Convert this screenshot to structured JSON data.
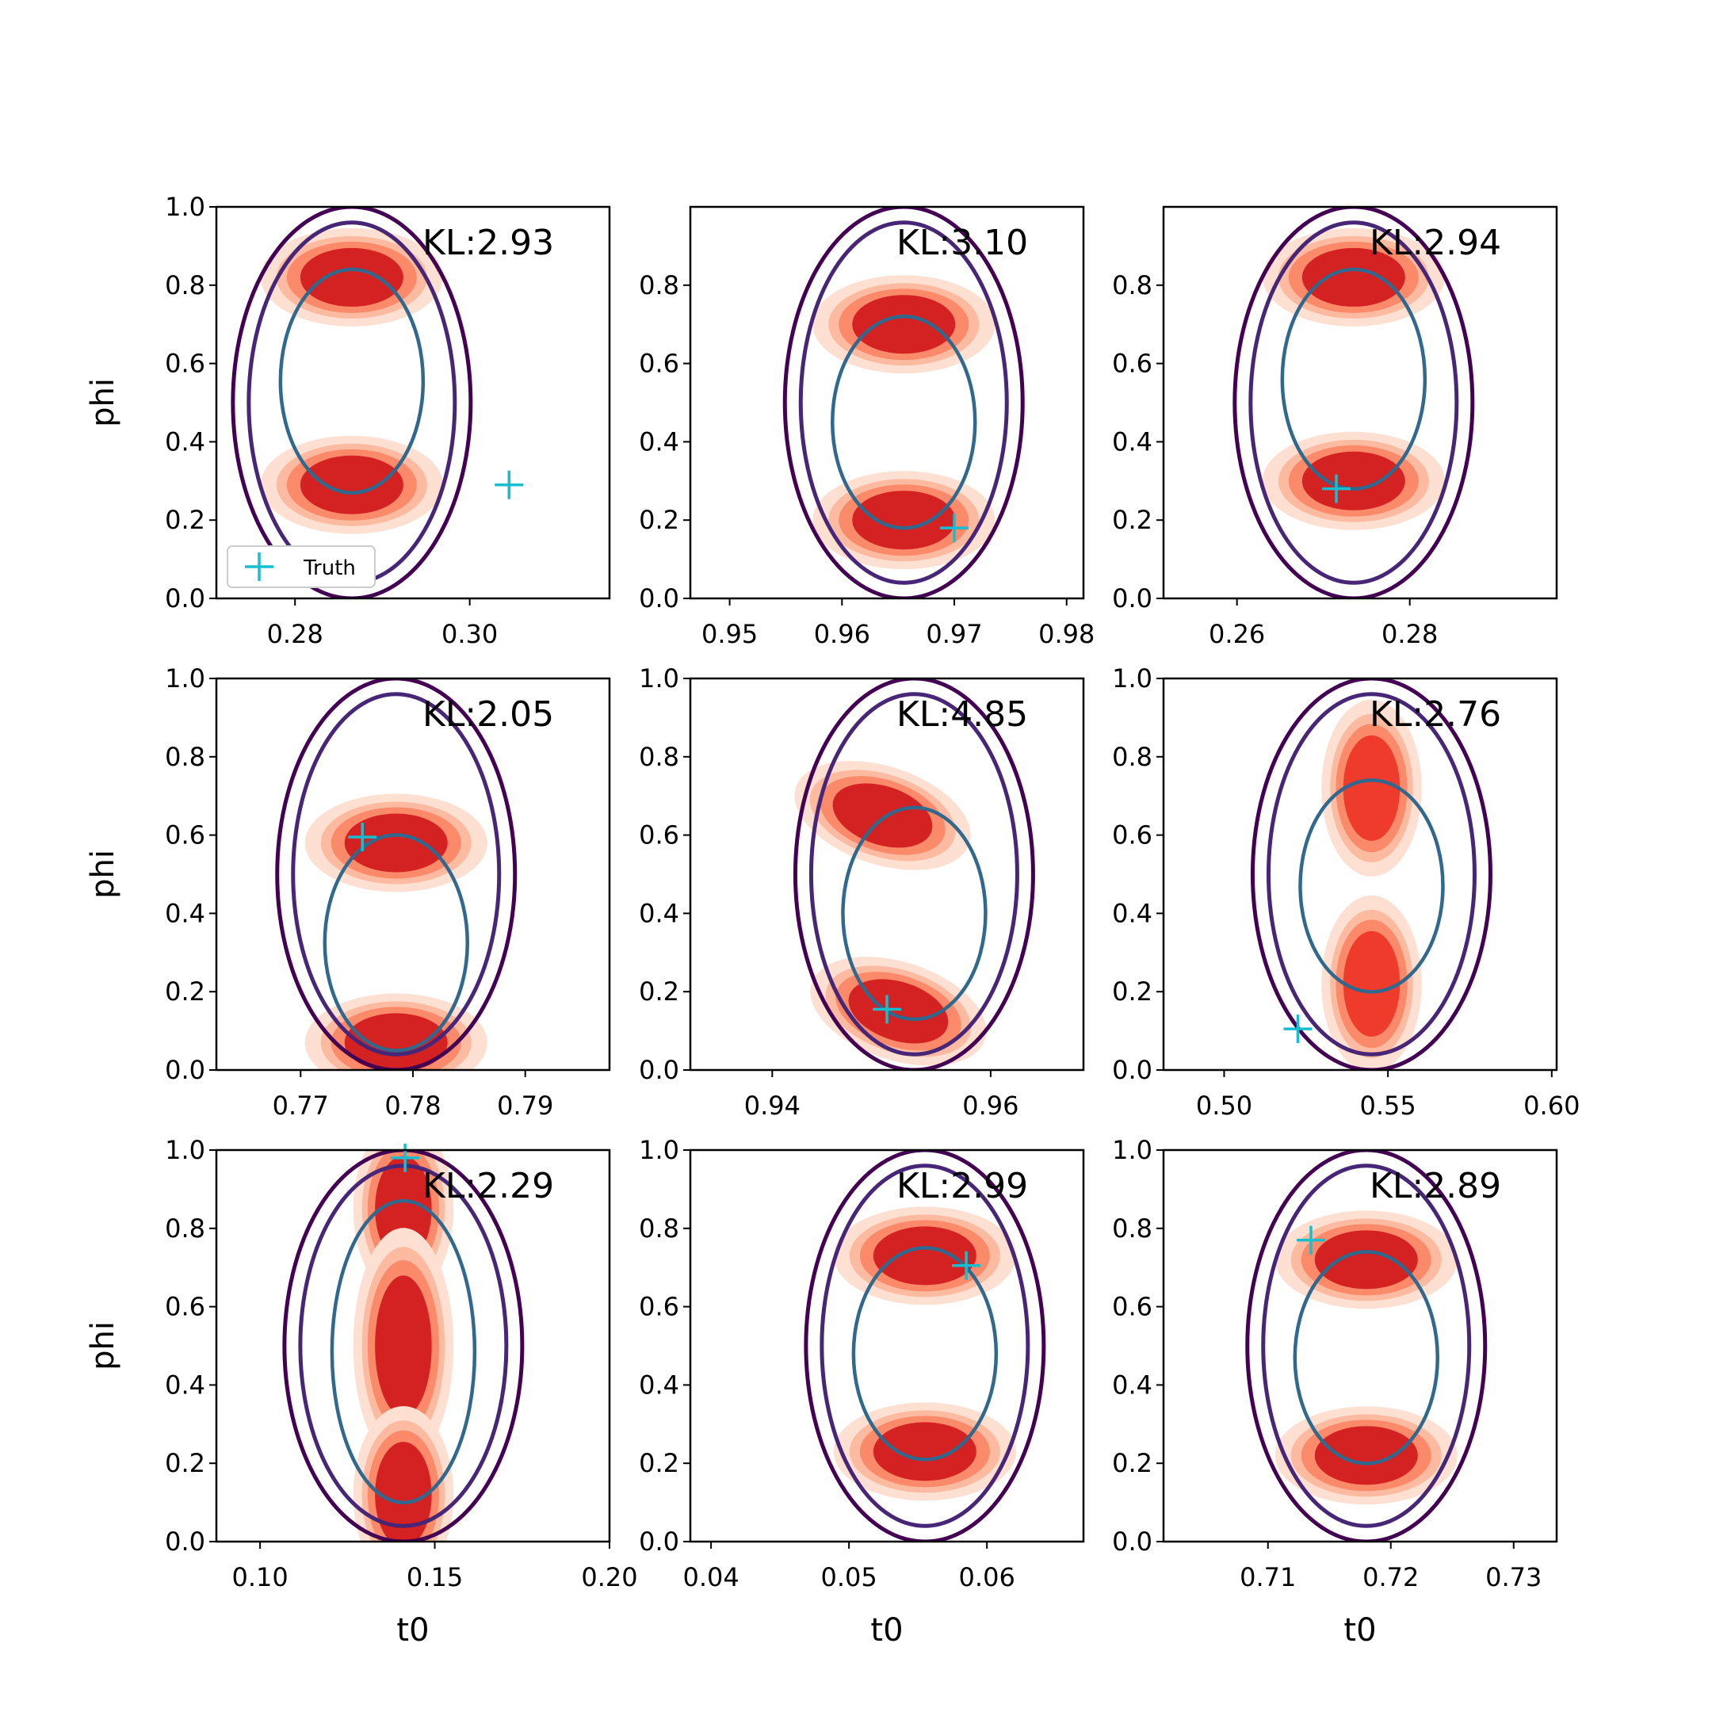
{
  "chart_data": [
    {
      "type": "contour",
      "xlabel": "",
      "ylabel": "phi",
      "xticks": [
        0.28,
        0.3
      ],
      "xlim": [
        0.271,
        0.316
      ],
      "yticks": [
        0.0,
        0.2,
        0.4,
        0.6,
        0.8,
        1.0
      ],
      "ylim": [
        0.0,
        1.0
      ],
      "annotation": "KL:2.93",
      "truth": {
        "x": 0.3045,
        "y": 0.29
      },
      "modes_phi": [
        0.82,
        0.29
      ],
      "center_t0": 0.2865,
      "legend": {
        "entries": [
          "Truth"
        ],
        "placement": "lower-left"
      }
    },
    {
      "type": "contour",
      "xlabel": "",
      "ylabel": "",
      "xticks": [
        0.95,
        0.96,
        0.97,
        0.98
      ],
      "xlim": [
        0.9465,
        0.9815
      ],
      "yticks": [
        0.0,
        0.2,
        0.4,
        0.6,
        0.8
      ],
      "ylim": [
        0.0,
        1.0
      ],
      "annotation": "KL:3.10",
      "truth": {
        "x": 0.97,
        "y": 0.18
      },
      "modes_phi": [
        0.7,
        0.2
      ],
      "center_t0": 0.9655
    },
    {
      "type": "contour",
      "xlabel": "",
      "ylabel": "",
      "xticks": [
        0.26,
        0.28
      ],
      "xlim": [
        0.2515,
        0.297
      ],
      "yticks": [
        0.0,
        0.2,
        0.4,
        0.6,
        0.8
      ],
      "ylim": [
        0.0,
        1.0
      ],
      "annotation": "KL:2.94",
      "truth": {
        "x": 0.2715,
        "y": 0.28
      },
      "modes_phi": [
        0.82,
        0.3
      ],
      "center_t0": 0.2735
    },
    {
      "type": "contour",
      "xlabel": "",
      "ylabel": "phi",
      "xticks": [
        0.77,
        0.78,
        0.79
      ],
      "xlim": [
        0.7625,
        0.7975
      ],
      "yticks": [
        0.0,
        0.2,
        0.4,
        0.6,
        0.8,
        1.0
      ],
      "ylim": [
        0.0,
        1.0
      ],
      "annotation": "KL:2.05",
      "truth": {
        "x": 0.7755,
        "y": 0.595
      },
      "modes_phi": [
        0.58,
        0.07
      ],
      "center_t0": 0.7785
    },
    {
      "type": "contour",
      "xlabel": "",
      "ylabel": "",
      "xticks": [
        0.94,
        0.96
      ],
      "xlim": [
        0.9325,
        0.9685
      ],
      "yticks": [
        0.0,
        0.2,
        0.4,
        0.6,
        0.8,
        1.0
      ],
      "ylim": [
        0.0,
        1.0
      ],
      "annotation": "KL:4.85",
      "truth": {
        "x": 0.9505,
        "y": 0.155
      },
      "modes_phi": [
        0.65,
        0.15
      ],
      "center_t0": 0.953
    },
    {
      "type": "contour",
      "xlabel": "",
      "ylabel": "",
      "xticks": [
        0.5,
        0.55,
        0.6
      ],
      "xlim": [
        0.4815,
        0.6015
      ],
      "yticks": [
        0.0,
        0.2,
        0.4,
        0.6,
        0.8,
        1.0
      ],
      "ylim": [
        0.0,
        1.0
      ],
      "annotation": "KL:2.76",
      "truth": {
        "x": 0.5225,
        "y": 0.105
      },
      "modes_phi": [
        0.72,
        0.22
      ],
      "center_t0": 0.545
    },
    {
      "type": "contour",
      "xlabel": "t0",
      "ylabel": "phi",
      "xticks": [
        0.1,
        0.15,
        0.2
      ],
      "xlim": [
        0.0875,
        0.2
      ],
      "yticks": [
        0.0,
        0.2,
        0.4,
        0.6,
        0.8,
        1.0
      ],
      "ylim": [
        0.0,
        1.0
      ],
      "annotation": "KL:2.29",
      "truth": {
        "x": 0.1415,
        "y": 0.98
      },
      "modes_phi": [
        0.85,
        0.5,
        0.12
      ],
      "center_t0": 0.141
    },
    {
      "type": "contour",
      "xlabel": "t0",
      "ylabel": "",
      "xticks": [
        0.04,
        0.05,
        0.06
      ],
      "xlim": [
        0.0385,
        0.067
      ],
      "yticks": [
        0.0,
        0.2,
        0.4,
        0.6,
        0.8,
        1.0
      ],
      "ylim": [
        0.0,
        1.0
      ],
      "annotation": "KL:2.99",
      "truth": {
        "x": 0.0585,
        "y": 0.705
      },
      "modes_phi": [
        0.73,
        0.23
      ],
      "center_t0": 0.0555
    },
    {
      "type": "contour",
      "xlabel": "t0",
      "ylabel": "",
      "xticks": [
        0.71,
        0.72,
        0.73
      ],
      "xlim": [
        0.7015,
        0.7335
      ],
      "yticks": [
        0.0,
        0.2,
        0.4,
        0.6,
        0.8,
        1.0
      ],
      "ylim": [
        0.0,
        1.0
      ],
      "annotation": "KL:2.89",
      "truth": {
        "x": 0.7135,
        "y": 0.77
      },
      "modes_phi": [
        0.72,
        0.22
      ],
      "center_t0": 0.718
    }
  ],
  "legend_label": "Truth",
  "colors": {
    "truth_marker": "#17becf",
    "outer_contour": "#440154",
    "middle_contour": "#482677",
    "inner_contour": "#31688e",
    "fill_light": "#fde0d2",
    "fill_mid": "#fcbba1",
    "fill_salmon": "#fb8a6a",
    "fill_dark": "#d42121"
  }
}
